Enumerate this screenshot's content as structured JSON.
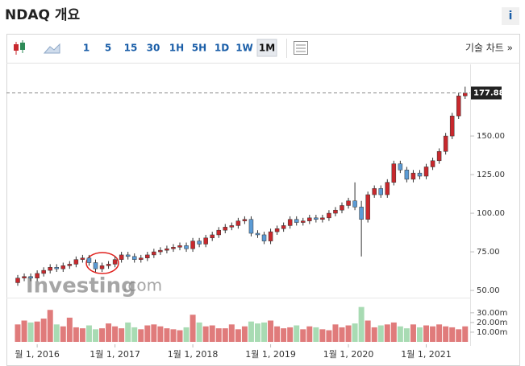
{
  "header": {
    "title": "NDAQ 개요",
    "info": "i"
  },
  "toolbar": {
    "intervals": [
      "1",
      "5",
      "15",
      "30",
      "1H",
      "5H",
      "1D",
      "1W",
      "1M"
    ],
    "selected": "1M",
    "technical_link": "기술 차트 »"
  },
  "watermark": [
    "Investing",
    ".com"
  ],
  "chart_data": {
    "type": "candlestick",
    "x": [
      "2015-10",
      "2015-11",
      "2015-12",
      "2016-01",
      "2016-02",
      "2016-03",
      "2016-04",
      "2016-05",
      "2016-06",
      "2016-07",
      "2016-08",
      "2016-09",
      "2016-10",
      "2016-11",
      "2016-12",
      "2017-01",
      "2017-02",
      "2017-03",
      "2017-04",
      "2017-05",
      "2017-06",
      "2017-07",
      "2017-08",
      "2017-09",
      "2017-10",
      "2017-11",
      "2017-12",
      "2018-01",
      "2018-02",
      "2018-03",
      "2018-04",
      "2018-05",
      "2018-06",
      "2018-07",
      "2018-08",
      "2018-09",
      "2018-10",
      "2018-11",
      "2018-12",
      "2019-01",
      "2019-02",
      "2019-03",
      "2019-04",
      "2019-05",
      "2019-06",
      "2019-07",
      "2019-08",
      "2019-09",
      "2019-10",
      "2019-11",
      "2019-12",
      "2020-01",
      "2020-02",
      "2020-03",
      "2020-04",
      "2020-05",
      "2020-06",
      "2020-07",
      "2020-08",
      "2020-09",
      "2020-10",
      "2020-11",
      "2020-12",
      "2021-01",
      "2021-02",
      "2021-03",
      "2021-04",
      "2021-05",
      "2021-06",
      "2021-07"
    ],
    "open": [
      55,
      58,
      59,
      58,
      61,
      63,
      65,
      64,
      66,
      67,
      70,
      71,
      68,
      64,
      66,
      67,
      70,
      73,
      72,
      70,
      71,
      73,
      75,
      76,
      77,
      78,
      79,
      77,
      82,
      80,
      84,
      86,
      89,
      91,
      92,
      95,
      96,
      87,
      86,
      82,
      88,
      90,
      92,
      96,
      94,
      95,
      97,
      96,
      97,
      100,
      102,
      105,
      108,
      104,
      96,
      112,
      116,
      112,
      120,
      132,
      128,
      122,
      126,
      124,
      130,
      134,
      140,
      150,
      163,
      176
    ],
    "high": [
      60,
      61,
      61,
      63,
      65,
      67,
      67,
      68,
      69,
      72,
      73,
      73,
      70,
      68,
      69,
      72,
      75,
      75,
      74,
      73,
      75,
      77,
      78,
      79,
      80,
      81,
      81,
      84,
      84,
      86,
      88,
      91,
      93,
      94,
      97,
      98,
      98,
      89,
      88,
      90,
      92,
      94,
      98,
      98,
      97,
      99,
      99,
      99,
      102,
      104,
      107,
      110,
      120,
      108,
      114,
      118,
      118,
      122,
      134,
      134,
      130,
      128,
      128,
      132,
      136,
      142,
      152,
      165,
      178,
      182
    ],
    "low": [
      53,
      56,
      56,
      56,
      59,
      61,
      62,
      62,
      64,
      65,
      68,
      66,
      62,
      62,
      64,
      65,
      68,
      70,
      68,
      68,
      69,
      71,
      73,
      74,
      75,
      76,
      75,
      75,
      78,
      78,
      82,
      84,
      87,
      89,
      90,
      93,
      85,
      84,
      80,
      80,
      86,
      88,
      90,
      92,
      92,
      93,
      94,
      94,
      95,
      98,
      100,
      103,
      102,
      72,
      94,
      110,
      110,
      110,
      118,
      126,
      120,
      120,
      122,
      122,
      128,
      132,
      138,
      148,
      161,
      174
    ],
    "close": [
      58,
      59,
      58,
      61,
      63,
      65,
      64,
      66,
      67,
      70,
      71,
      68,
      64,
      66,
      67,
      70,
      73,
      72,
      70,
      71,
      73,
      75,
      76,
      77,
      78,
      79,
      77,
      82,
      80,
      84,
      86,
      89,
      91,
      92,
      95,
      96,
      87,
      86,
      82,
      88,
      90,
      92,
      96,
      94,
      95,
      97,
      96,
      97,
      100,
      102,
      105,
      108,
      104,
      96,
      112,
      116,
      112,
      120,
      132,
      128,
      122,
      126,
      124,
      130,
      134,
      140,
      150,
      163,
      176,
      177.88
    ],
    "volume": [
      18,
      22,
      20,
      21,
      24,
      33,
      18,
      16,
      25,
      15,
      14,
      17,
      13,
      14,
      19,
      16,
      14,
      20,
      15,
      13,
      17,
      18,
      16,
      14,
      13,
      12,
      15,
      28,
      20,
      16,
      17,
      14,
      14,
      18,
      13,
      16,
      21,
      19,
      20,
      22,
      16,
      14,
      15,
      17,
      13,
      16,
      15,
      13,
      12,
      18,
      15,
      17,
      19,
      36,
      22,
      15,
      17,
      18,
      20,
      16,
      14,
      18,
      15,
      17,
      16,
      18,
      16,
      15,
      13,
      16
    ],
    "up_color": "#c8282d",
    "down_color": "#5b9bd5",
    "volume_up_color": "#e07b7b",
    "volume_down_color": "#a8dbb3",
    "ylim": [
      44.3,
      193.8
    ],
    "yticks": [
      {
        "value": 50,
        "label": "50.00"
      },
      {
        "value": 75,
        "label": "75.00"
      },
      {
        "value": 100,
        "label": "100.00"
      },
      {
        "value": 125,
        "label": "125.00"
      },
      {
        "value": 150,
        "label": "150.00"
      }
    ],
    "volume_lim": [
      0,
      44
    ],
    "volume_ticks": [
      {
        "value": 10,
        "label": "10.00m"
      },
      {
        "value": 20,
        "label": "20.00m"
      },
      {
        "value": 30,
        "label": "30.00m"
      }
    ],
    "xticks": [
      {
        "value": "2016-01",
        "label": "월 1, 2016"
      },
      {
        "value": "2017-01",
        "label": "1월 1, 2017"
      },
      {
        "value": "2018-01",
        "label": "1월 1, 2018"
      },
      {
        "value": "2019-01",
        "label": "1월 1, 2019"
      },
      {
        "value": "2020-01",
        "label": "1월 1, 2020"
      },
      {
        "value": "2021-01",
        "label": "1월 1, 2021"
      }
    ],
    "last_price_label": "177.88"
  }
}
